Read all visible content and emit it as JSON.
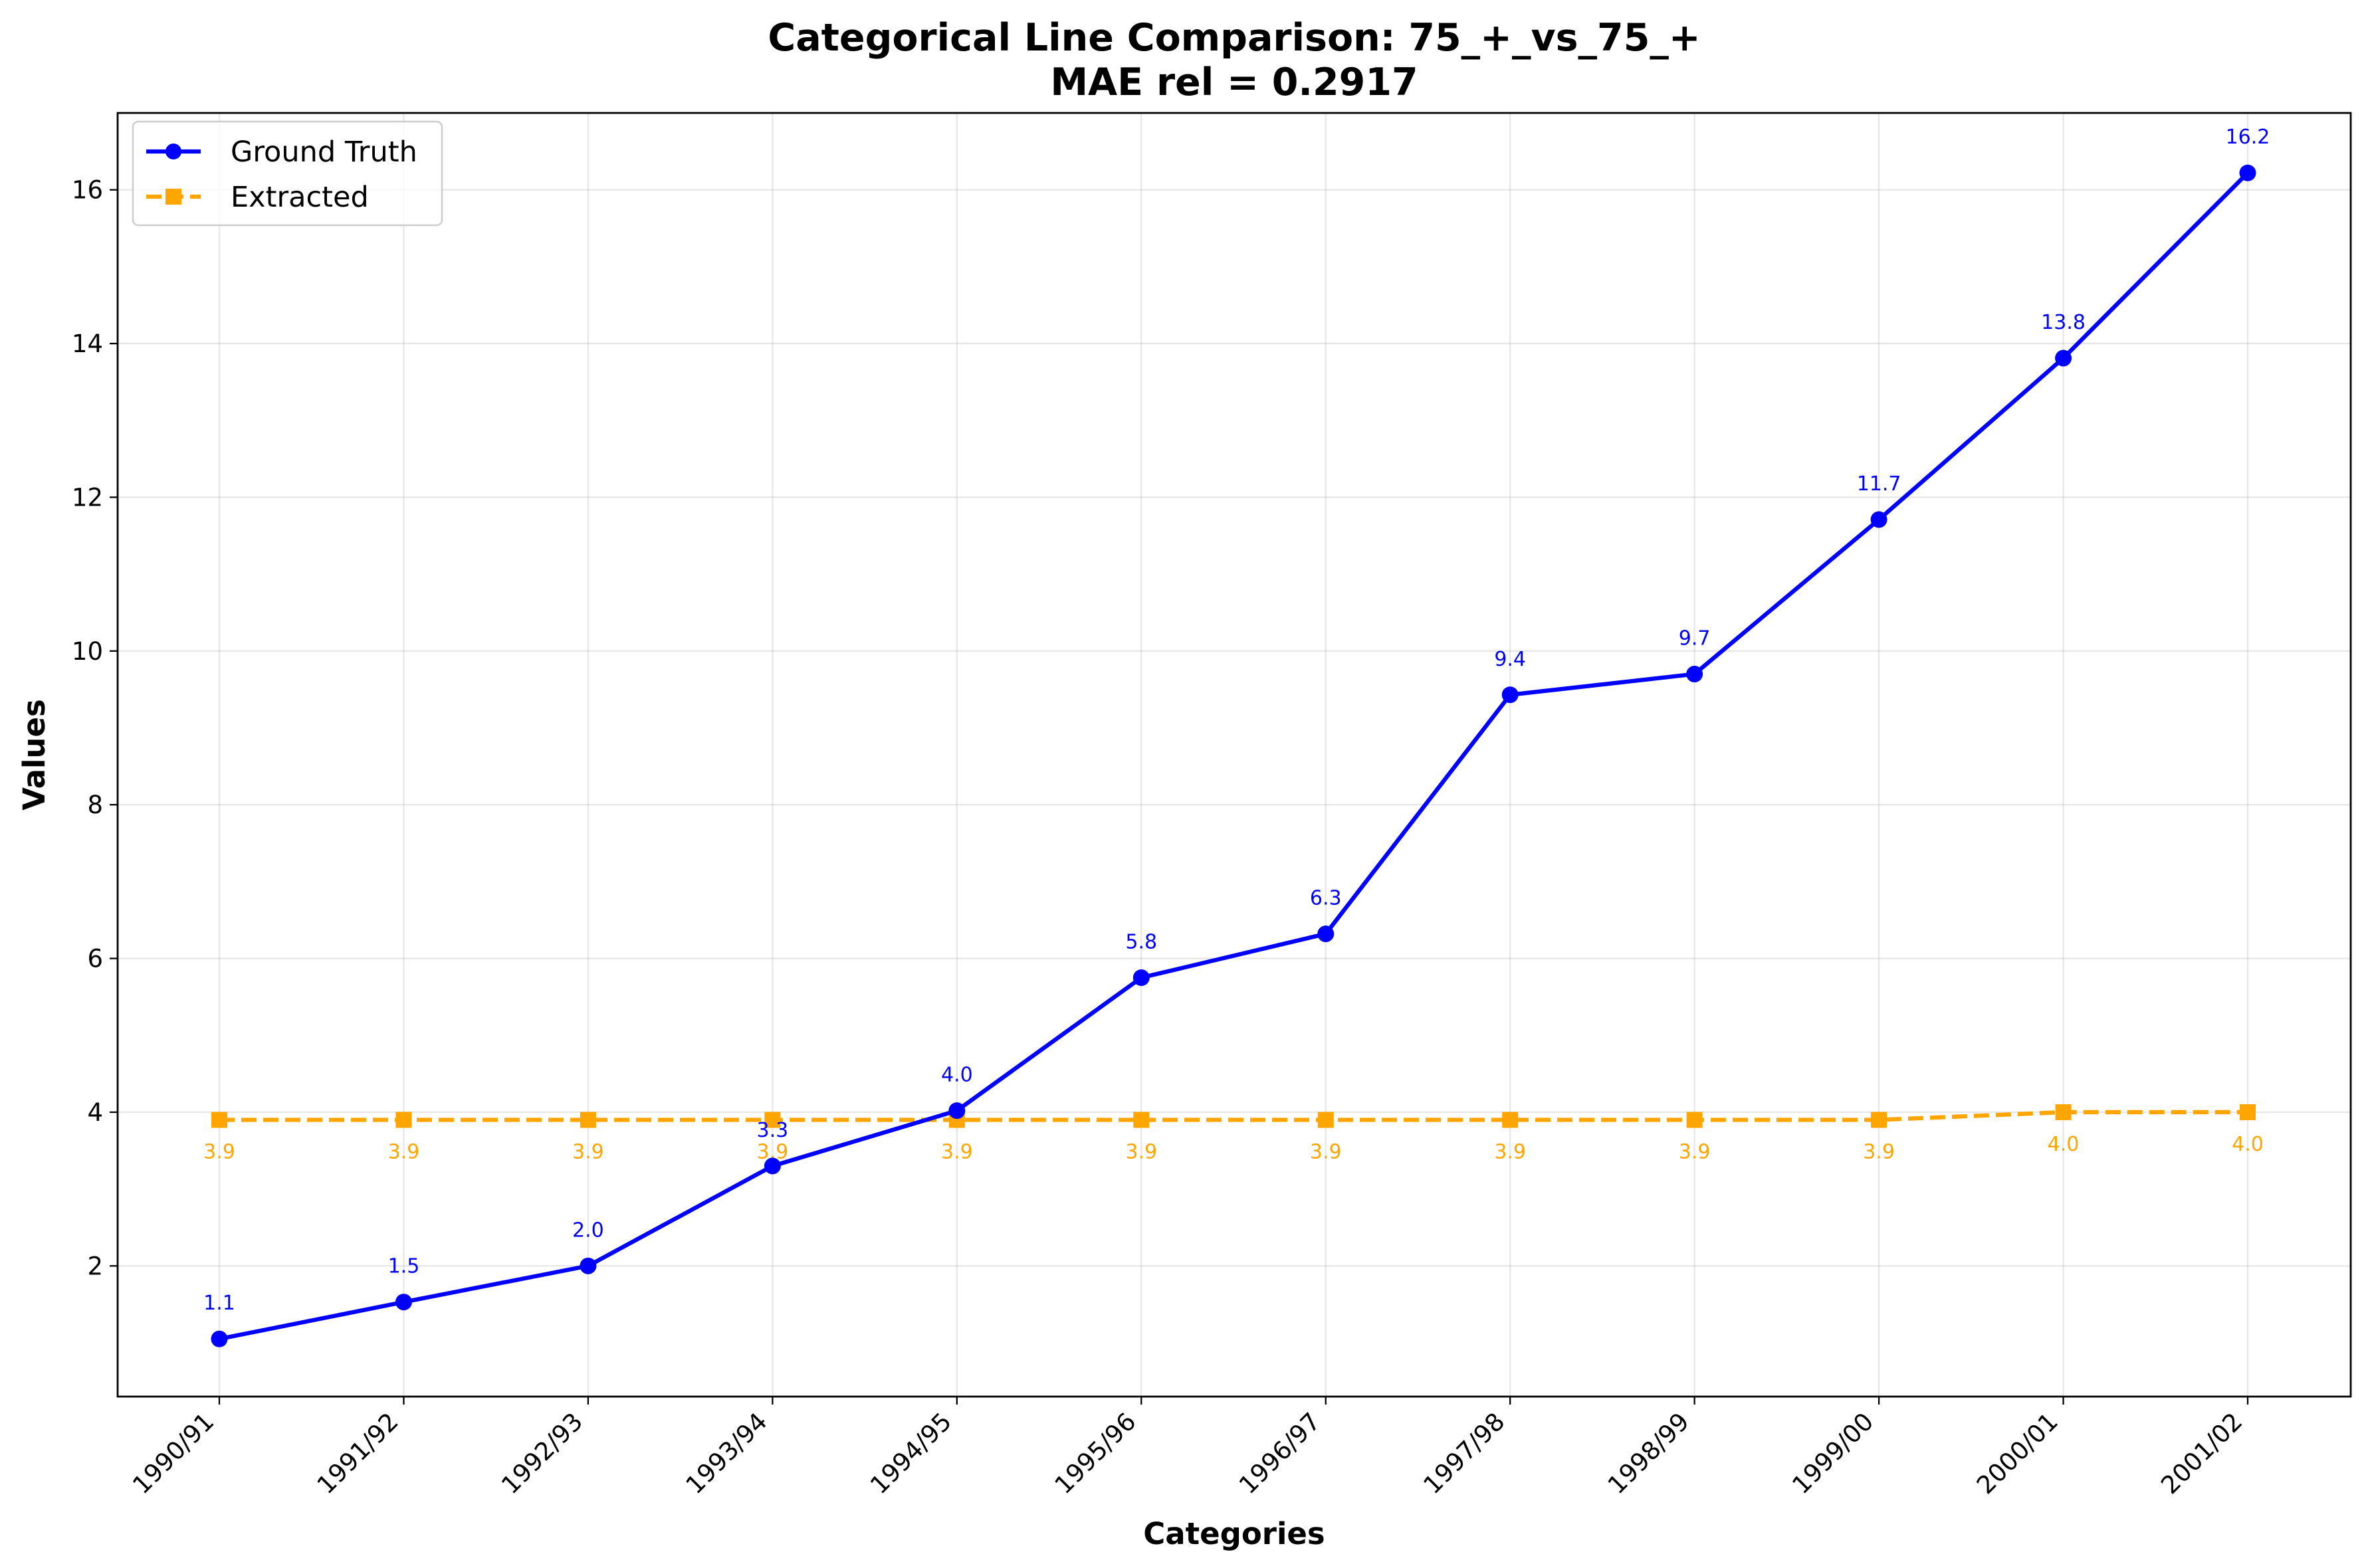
{
  "chart_data": {
    "type": "line",
    "title_line1": "Categorical Line Comparison: 75_+_vs_75_+",
    "title_line2": "MAE rel = 0.2917",
    "xlabel": "Categories",
    "ylabel": "Values",
    "categories": [
      "1990/91",
      "1991/92",
      "1992/93",
      "1993/94",
      "1994/95",
      "1995/96",
      "1996/97",
      "1997/98",
      "1998/99",
      "1999/00",
      "2000/01",
      "2001/02"
    ],
    "ylim": [
      0.3,
      17.0
    ],
    "yticks": [
      2,
      4,
      6,
      8,
      10,
      12,
      14,
      16
    ],
    "grid": true,
    "legend_position": "top-left",
    "series": [
      {
        "name": "Ground Truth",
        "color": "#0000ff",
        "marker": "circle",
        "linestyle": "solid",
        "values": [
          1.05,
          1.53,
          2.0,
          3.3,
          4.02,
          5.75,
          6.32,
          9.43,
          9.7,
          11.71,
          13.81,
          16.22
        ],
        "labels": [
          "1.1",
          "1.5",
          "2.0",
          "3.3",
          "4.0",
          "5.8",
          "6.3",
          "9.4",
          "9.7",
          "11.7",
          "13.8",
          "16.2"
        ]
      },
      {
        "name": "Extracted",
        "color": "#ffa500",
        "marker": "square",
        "linestyle": "dashed",
        "values": [
          3.9,
          3.9,
          3.9,
          3.9,
          3.9,
          3.9,
          3.9,
          3.9,
          3.9,
          3.9,
          4.0,
          4.0
        ],
        "labels": [
          "3.9",
          "3.9",
          "3.9",
          "3.9",
          "3.9",
          "3.9",
          "3.9",
          "3.9",
          "3.9",
          "3.9",
          "4.0",
          "4.0"
        ]
      }
    ]
  }
}
